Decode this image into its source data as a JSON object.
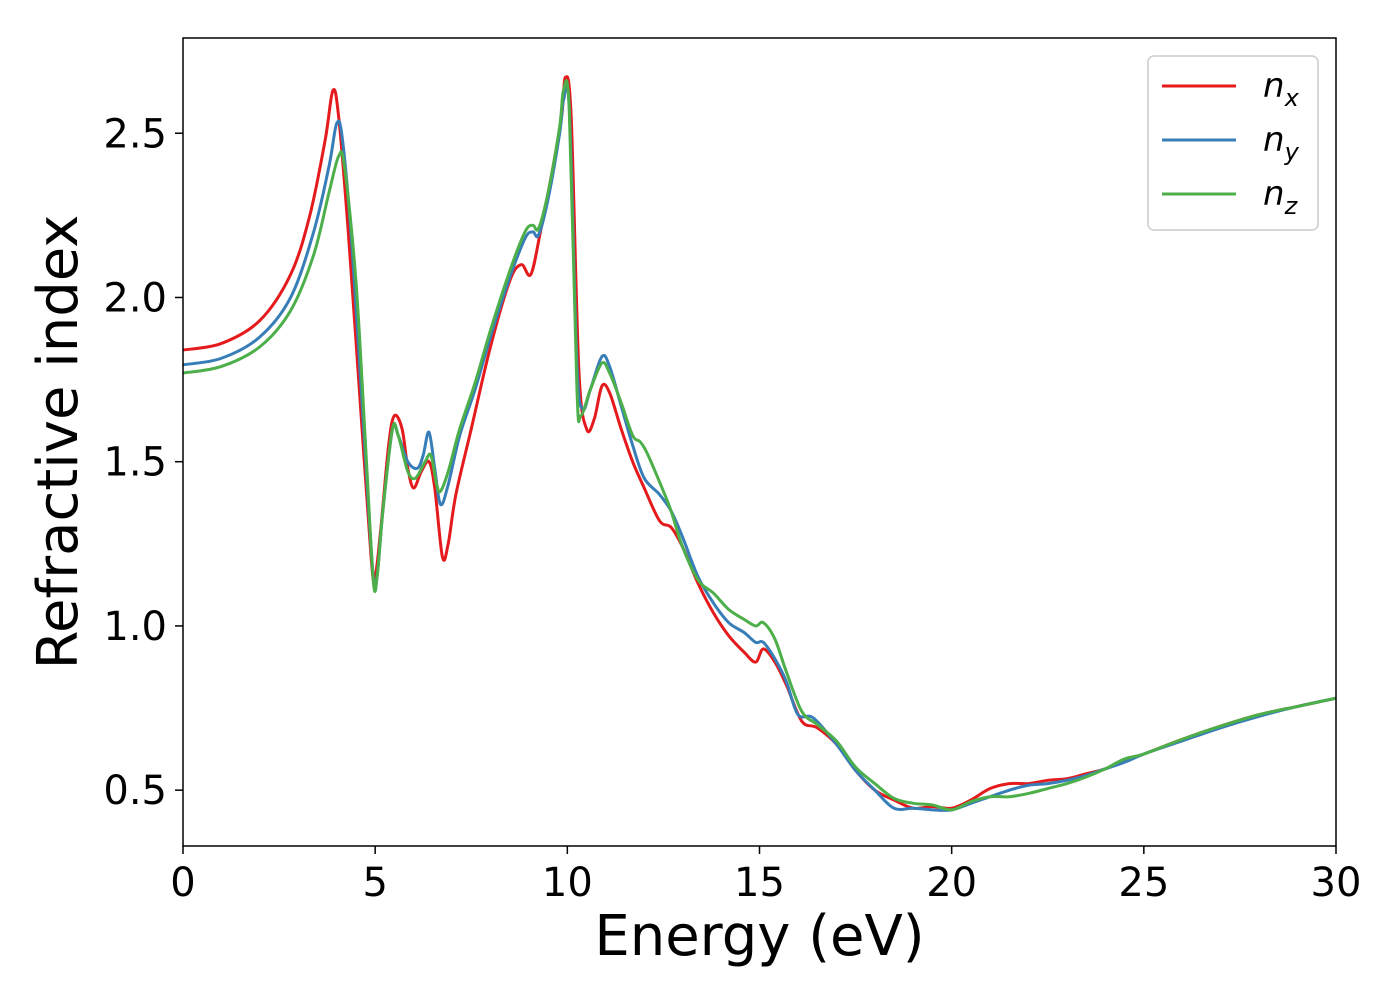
{
  "chart_data": {
    "type": "line",
    "title": "",
    "xlabel": "Energy (eV)",
    "ylabel": "Refractive index",
    "xlim": [
      0,
      30
    ],
    "ylim": [
      0.33,
      2.79
    ],
    "xticks": [
      0,
      5,
      10,
      15,
      20,
      25,
      30
    ],
    "xtick_labels": [
      "0",
      "5",
      "10",
      "15",
      "20",
      "25",
      "30"
    ],
    "yticks": [
      0.5,
      1.0,
      1.5,
      2.0,
      2.5
    ],
    "ytick_labels": [
      "0.5",
      "1.0",
      "1.5",
      "2.0",
      "2.5"
    ],
    "grid": false,
    "legend_position": "top-right",
    "series": [
      {
        "name": "n",
        "subscript": "x",
        "color": "#e41a1c",
        "points": [
          [
            0,
            1.84
          ],
          [
            1,
            1.86
          ],
          [
            2,
            1.93
          ],
          [
            2.8,
            2.07
          ],
          [
            3.3,
            2.25
          ],
          [
            3.7,
            2.48
          ],
          [
            3.9,
            2.63
          ],
          [
            4.05,
            2.55
          ],
          [
            4.3,
            2.2
          ],
          [
            4.6,
            1.7
          ],
          [
            4.9,
            1.2
          ],
          [
            5.0,
            1.15
          ],
          [
            5.15,
            1.3
          ],
          [
            5.35,
            1.55
          ],
          [
            5.5,
            1.64
          ],
          [
            5.7,
            1.6
          ],
          [
            5.85,
            1.48
          ],
          [
            6.0,
            1.42
          ],
          [
            6.2,
            1.47
          ],
          [
            6.4,
            1.5
          ],
          [
            6.55,
            1.42
          ],
          [
            6.75,
            1.21
          ],
          [
            6.9,
            1.25
          ],
          [
            7.1,
            1.4
          ],
          [
            7.5,
            1.6
          ],
          [
            8.0,
            1.85
          ],
          [
            8.5,
            2.05
          ],
          [
            8.8,
            2.1
          ],
          [
            9.05,
            2.07
          ],
          [
            9.3,
            2.2
          ],
          [
            9.6,
            2.38
          ],
          [
            9.85,
            2.55
          ],
          [
            9.95,
            2.67
          ],
          [
            10.1,
            2.55
          ],
          [
            10.3,
            1.78
          ],
          [
            10.5,
            1.6
          ],
          [
            10.7,
            1.63
          ],
          [
            10.9,
            1.73
          ],
          [
            11.1,
            1.71
          ],
          [
            11.4,
            1.6
          ],
          [
            11.7,
            1.5
          ],
          [
            12.0,
            1.42
          ],
          [
            12.4,
            1.32
          ],
          [
            12.7,
            1.3
          ],
          [
            13.0,
            1.24
          ],
          [
            13.4,
            1.13
          ],
          [
            13.8,
            1.04
          ],
          [
            14.2,
            0.97
          ],
          [
            14.6,
            0.92
          ],
          [
            14.9,
            0.89
          ],
          [
            15.1,
            0.93
          ],
          [
            15.4,
            0.89
          ],
          [
            15.7,
            0.82
          ],
          [
            16.1,
            0.71
          ],
          [
            16.5,
            0.69
          ],
          [
            17.0,
            0.64
          ],
          [
            17.5,
            0.56
          ],
          [
            18.0,
            0.5
          ],
          [
            18.5,
            0.47
          ],
          [
            19.0,
            0.445
          ],
          [
            19.5,
            0.45
          ],
          [
            20.0,
            0.445
          ],
          [
            20.5,
            0.47
          ],
          [
            21.0,
            0.505
          ],
          [
            21.5,
            0.52
          ],
          [
            22.0,
            0.52
          ],
          [
            22.5,
            0.53
          ],
          [
            23.0,
            0.535
          ],
          [
            23.5,
            0.55
          ],
          [
            24.0,
            0.565
          ],
          [
            24.5,
            0.59
          ],
          [
            25.0,
            0.61
          ],
          [
            26.0,
            0.655
          ],
          [
            27.0,
            0.695
          ],
          [
            28.0,
            0.73
          ],
          [
            29.0,
            0.755
          ],
          [
            30.0,
            0.78
          ]
        ]
      },
      {
        "name": "n",
        "subscript": "y",
        "color": "#377eb8",
        "points": [
          [
            0,
            1.795
          ],
          [
            1,
            1.815
          ],
          [
            2,
            1.88
          ],
          [
            2.8,
            2.0
          ],
          [
            3.4,
            2.2
          ],
          [
            3.8,
            2.4
          ],
          [
            4.0,
            2.53
          ],
          [
            4.15,
            2.48
          ],
          [
            4.4,
            2.15
          ],
          [
            4.7,
            1.6
          ],
          [
            4.95,
            1.15
          ],
          [
            5.05,
            1.15
          ],
          [
            5.2,
            1.35
          ],
          [
            5.45,
            1.6
          ],
          [
            5.6,
            1.58
          ],
          [
            5.85,
            1.5
          ],
          [
            6.1,
            1.48
          ],
          [
            6.25,
            1.52
          ],
          [
            6.4,
            1.59
          ],
          [
            6.55,
            1.48
          ],
          [
            6.7,
            1.37
          ],
          [
            6.9,
            1.43
          ],
          [
            7.2,
            1.58
          ],
          [
            7.6,
            1.72
          ],
          [
            8.0,
            1.88
          ],
          [
            8.5,
            2.06
          ],
          [
            8.9,
            2.18
          ],
          [
            9.1,
            2.2
          ],
          [
            9.25,
            2.19
          ],
          [
            9.5,
            2.3
          ],
          [
            9.8,
            2.5
          ],
          [
            9.9,
            2.6
          ],
          [
            10.05,
            2.58
          ],
          [
            10.25,
            1.8
          ],
          [
            10.4,
            1.66
          ],
          [
            10.6,
            1.72
          ],
          [
            10.9,
            1.82
          ],
          [
            11.1,
            1.79
          ],
          [
            11.4,
            1.67
          ],
          [
            11.7,
            1.55
          ],
          [
            12.0,
            1.45
          ],
          [
            12.4,
            1.4
          ],
          [
            12.7,
            1.35
          ],
          [
            13.0,
            1.27
          ],
          [
            13.4,
            1.15
          ],
          [
            13.8,
            1.07
          ],
          [
            14.2,
            1.01
          ],
          [
            14.6,
            0.98
          ],
          [
            14.9,
            0.95
          ],
          [
            15.1,
            0.95
          ],
          [
            15.4,
            0.9
          ],
          [
            15.7,
            0.83
          ],
          [
            16.0,
            0.73
          ],
          [
            16.4,
            0.72
          ],
          [
            17.0,
            0.64
          ],
          [
            17.5,
            0.56
          ],
          [
            18.0,
            0.5
          ],
          [
            18.5,
            0.445
          ],
          [
            19.0,
            0.445
          ],
          [
            19.5,
            0.44
          ],
          [
            20.0,
            0.44
          ],
          [
            20.5,
            0.46
          ],
          [
            21.0,
            0.48
          ],
          [
            21.5,
            0.5
          ],
          [
            22.0,
            0.515
          ],
          [
            22.5,
            0.52
          ],
          [
            23.0,
            0.53
          ],
          [
            23.5,
            0.545
          ],
          [
            24.0,
            0.565
          ],
          [
            24.5,
            0.585
          ],
          [
            25.0,
            0.61
          ],
          [
            26.0,
            0.65
          ],
          [
            27.0,
            0.69
          ],
          [
            28.0,
            0.725
          ],
          [
            29.0,
            0.755
          ],
          [
            30.0,
            0.78
          ]
        ]
      },
      {
        "name": "n",
        "subscript": "z",
        "color": "#4daf4a",
        "points": [
          [
            0,
            1.77
          ],
          [
            1,
            1.79
          ],
          [
            2,
            1.85
          ],
          [
            2.8,
            1.96
          ],
          [
            3.4,
            2.13
          ],
          [
            3.8,
            2.32
          ],
          [
            4.05,
            2.43
          ],
          [
            4.2,
            2.4
          ],
          [
            4.5,
            2.05
          ],
          [
            4.75,
            1.55
          ],
          [
            4.95,
            1.14
          ],
          [
            5.05,
            1.15
          ],
          [
            5.2,
            1.35
          ],
          [
            5.45,
            1.6
          ],
          [
            5.6,
            1.58
          ],
          [
            5.85,
            1.47
          ],
          [
            6.05,
            1.45
          ],
          [
            6.3,
            1.5
          ],
          [
            6.45,
            1.52
          ],
          [
            6.6,
            1.43
          ],
          [
            6.7,
            1.41
          ],
          [
            6.9,
            1.47
          ],
          [
            7.2,
            1.6
          ],
          [
            7.6,
            1.74
          ],
          [
            8.0,
            1.9
          ],
          [
            8.5,
            2.08
          ],
          [
            8.9,
            2.2
          ],
          [
            9.1,
            2.22
          ],
          [
            9.25,
            2.21
          ],
          [
            9.5,
            2.32
          ],
          [
            9.8,
            2.52
          ],
          [
            9.9,
            2.63
          ],
          [
            10.05,
            2.57
          ],
          [
            10.25,
            1.72
          ],
          [
            10.35,
            1.64
          ],
          [
            10.6,
            1.72
          ],
          [
            10.9,
            1.8
          ],
          [
            11.1,
            1.77
          ],
          [
            11.4,
            1.68
          ],
          [
            11.7,
            1.58
          ],
          [
            11.9,
            1.56
          ],
          [
            12.1,
            1.52
          ],
          [
            12.5,
            1.41
          ],
          [
            12.7,
            1.35
          ],
          [
            13.0,
            1.24
          ],
          [
            13.4,
            1.14
          ],
          [
            13.8,
            1.1
          ],
          [
            14.2,
            1.05
          ],
          [
            14.6,
            1.02
          ],
          [
            14.9,
            1.0
          ],
          [
            15.1,
            1.01
          ],
          [
            15.4,
            0.96
          ],
          [
            15.7,
            0.86
          ],
          [
            16.1,
            0.74
          ],
          [
            16.5,
            0.7
          ],
          [
            17.0,
            0.65
          ],
          [
            17.5,
            0.57
          ],
          [
            18.0,
            0.52
          ],
          [
            18.5,
            0.475
          ],
          [
            19.0,
            0.46
          ],
          [
            19.5,
            0.455
          ],
          [
            20.0,
            0.44
          ],
          [
            20.5,
            0.465
          ],
          [
            21.0,
            0.48
          ],
          [
            21.5,
            0.48
          ],
          [
            22.0,
            0.49
          ],
          [
            22.5,
            0.505
          ],
          [
            23.0,
            0.52
          ],
          [
            23.5,
            0.54
          ],
          [
            24.0,
            0.565
          ],
          [
            24.5,
            0.595
          ],
          [
            25.0,
            0.61
          ],
          [
            26.0,
            0.655
          ],
          [
            27.0,
            0.695
          ],
          [
            28.0,
            0.73
          ],
          [
            29.0,
            0.755
          ],
          [
            30.0,
            0.78
          ]
        ]
      }
    ]
  }
}
